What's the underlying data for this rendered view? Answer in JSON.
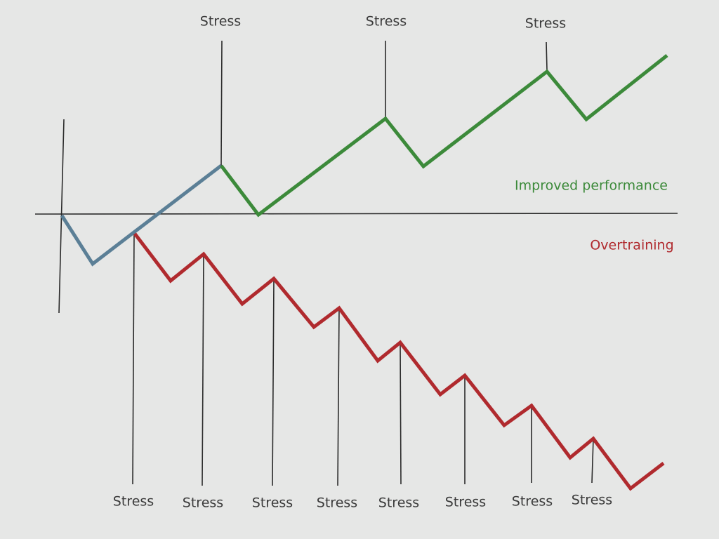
{
  "labels": {
    "improved": "Improved performance",
    "overtraining": "Overtraining"
  },
  "top_stress": [
    "Stress",
    "Stress",
    "Stress"
  ],
  "bottom_stress": [
    "Stress",
    "Stress",
    "Stress",
    "Stress",
    "Stress",
    "Stress",
    "Stress",
    "Stress"
  ]
}
